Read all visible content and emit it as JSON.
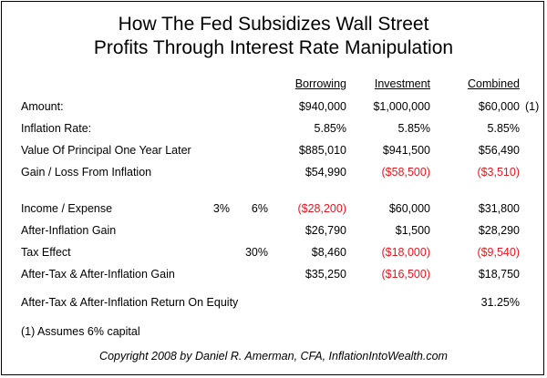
{
  "title_line1": "How The Fed Subsidizes Wall Street",
  "title_line2": "Profits Through Interest Rate Manipulation",
  "headers": {
    "borrowing": "Borrowing",
    "investment": "Investment",
    "combined": "Combined"
  },
  "rows": {
    "amount": {
      "label": "Amount:",
      "borrowing": "$940,000",
      "investment": "$1,000,000",
      "combined": "$60,000",
      "note": "(1)"
    },
    "inflation_rate": {
      "label": "Inflation Rate:",
      "borrowing": "5.85%",
      "investment": "5.85%",
      "combined": "5.85%"
    },
    "principal_later": {
      "label": "Value Of Principal One Year Later",
      "borrowing": "$885,010",
      "investment": "$941,500",
      "combined": "$56,490"
    },
    "gain_loss": {
      "label": "Gain / Loss From Inflation",
      "borrowing": "$54,990",
      "investment": "($58,500)",
      "combined": "($3,510)"
    },
    "income_expense": {
      "label": "Income / Expense",
      "rate_a": "3%",
      "rate_b": "6%",
      "borrowing": "($28,200)",
      "investment": "$60,000",
      "combined": "$31,800"
    },
    "after_inflation": {
      "label": "After-Inflation Gain",
      "borrowing": "$26,790",
      "investment": "$1,500",
      "combined": "$28,290"
    },
    "tax_effect": {
      "label": "Tax Effect",
      "rate_b": "30%",
      "borrowing": "$8,460",
      "investment": "($18,000)",
      "combined": "($9,540)"
    },
    "after_tax": {
      "label": "After-Tax & After-Inflation Gain",
      "borrowing": "$35,250",
      "investment": "($16,500)",
      "combined": "$18,750"
    },
    "return_equity": {
      "label": "After-Tax & After-Inflation Return On Equity",
      "combined": "31.25%"
    }
  },
  "footnote": "(1) Assumes 6% capital",
  "copyright": "Copyright 2008 by Daniel R. Amerman, CFA, InflationIntoWealth.com",
  "colors": {
    "negative": "#e8151c",
    "text": "#000000",
    "border": "#000000"
  }
}
